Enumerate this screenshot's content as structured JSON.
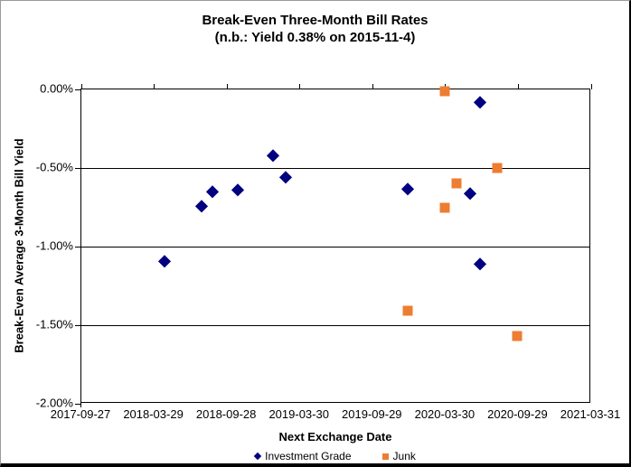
{
  "chart_data": {
    "type": "scatter",
    "title": "Break-Even Three-Month Bill Rates",
    "subtitle": "(n.b.: Yield 0.38% on 2015-11-4)",
    "xlabel": "Next Exchange Date",
    "ylabel": "Break-Even Average 3-Month Bill Yield",
    "grid": "horizontal-major",
    "legend_position": "bottom",
    "background_color": "#ffffff",
    "x_axis": {
      "range": [
        "2017-09-27",
        "2021-03-31"
      ],
      "tick_labels": [
        "2017-09-27",
        "2018-03-29",
        "2018-09-28",
        "2019-03-30",
        "2019-09-29",
        "2020-03-30",
        "2020-09-29",
        "2021-03-31"
      ]
    },
    "y_axis": {
      "range": [
        -2.0,
        0.0
      ],
      "tick_labels": [
        "0.00%",
        "-0.50%",
        "-1.00%",
        "-1.50%",
        "-2.00%"
      ],
      "unit": "percent"
    },
    "series": [
      {
        "name": "Investment Grade",
        "marker": "diamond",
        "color": "#000080",
        "points": [
          {
            "x": "2018-04-24",
            "y": -1.09
          },
          {
            "x": "2018-07-26",
            "y": -0.74
          },
          {
            "x": "2018-08-22",
            "y": -0.65
          },
          {
            "x": "2018-10-25",
            "y": -0.64
          },
          {
            "x": "2019-01-21",
            "y": -0.42
          },
          {
            "x": "2019-02-22",
            "y": -0.56
          },
          {
            "x": "2019-12-26",
            "y": -0.63
          },
          {
            "x": "2020-05-30",
            "y": -0.66
          },
          {
            "x": "2020-06-24",
            "y": -0.08
          },
          {
            "x": "2020-06-24",
            "y": -1.11
          }
        ]
      },
      {
        "name": "Junk",
        "marker": "square",
        "color": "#ED7D31",
        "points": [
          {
            "x": "2019-12-26",
            "y": -1.41
          },
          {
            "x": "2020-03-27",
            "y": -0.01
          },
          {
            "x": "2020-03-27",
            "y": -0.75
          },
          {
            "x": "2020-04-26",
            "y": -0.6
          },
          {
            "x": "2020-08-07",
            "y": -0.5
          },
          {
            "x": "2020-09-26",
            "y": -1.57
          }
        ]
      }
    ]
  }
}
